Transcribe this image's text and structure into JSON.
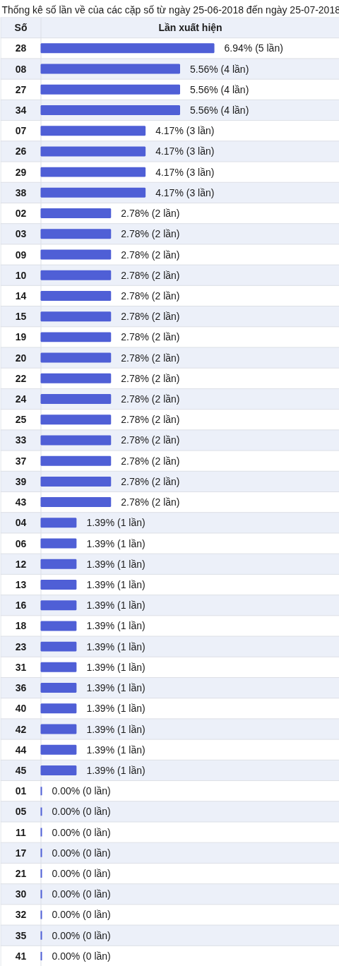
{
  "chart_data": {
    "type": "bar",
    "orientation": "horizontal",
    "title": "Thống kê số lần về của các cặp số từ ngày 25-06-2018 đến ngày 25-07-2018",
    "ylabel": "Số",
    "xlabel": "Lần xuất hiện",
    "categories": [
      "28",
      "08",
      "27",
      "34",
      "07",
      "26",
      "29",
      "38",
      "02",
      "03",
      "09",
      "10",
      "14",
      "15",
      "19",
      "20",
      "22",
      "24",
      "25",
      "33",
      "37",
      "39",
      "43",
      "04",
      "06",
      "12",
      "13",
      "16",
      "18",
      "23",
      "31",
      "36",
      "40",
      "42",
      "44",
      "45",
      "01",
      "05",
      "11",
      "17",
      "21",
      "30",
      "32",
      "35",
      "41"
    ],
    "values": [
      6.94,
      5.56,
      5.56,
      5.56,
      4.17,
      4.17,
      4.17,
      4.17,
      2.78,
      2.78,
      2.78,
      2.78,
      2.78,
      2.78,
      2.78,
      2.78,
      2.78,
      2.78,
      2.78,
      2.78,
      2.78,
      2.78,
      2.78,
      1.39,
      1.39,
      1.39,
      1.39,
      1.39,
      1.39,
      1.39,
      1.39,
      1.39,
      1.39,
      1.39,
      1.39,
      1.39,
      0.0,
      0.0,
      0.0,
      0.0,
      0.0,
      0.0,
      0.0,
      0.0,
      0.0
    ],
    "value_labels": [
      "6.94% (5 lần)",
      "5.56% (4 lần)",
      "5.56% (4 lần)",
      "5.56% (4 lần)",
      "4.17% (3 lần)",
      "4.17% (3 lần)",
      "4.17% (3 lần)",
      "4.17% (3 lần)",
      "2.78% (2 lần)",
      "2.78% (2 lần)",
      "2.78% (2 lần)",
      "2.78% (2 lần)",
      "2.78% (2 lần)",
      "2.78% (2 lần)",
      "2.78% (2 lần)",
      "2.78% (2 lần)",
      "2.78% (2 lần)",
      "2.78% (2 lần)",
      "2.78% (2 lần)",
      "2.78% (2 lần)",
      "2.78% (2 lần)",
      "2.78% (2 lần)",
      "2.78% (2 lần)",
      "1.39% (1 lần)",
      "1.39% (1 lần)",
      "1.39% (1 lần)",
      "1.39% (1 lần)",
      "1.39% (1 lần)",
      "1.39% (1 lần)",
      "1.39% (1 lần)",
      "1.39% (1 lần)",
      "1.39% (1 lần)",
      "1.39% (1 lần)",
      "1.39% (1 lần)",
      "1.39% (1 lần)",
      "1.39% (1 lần)",
      "0.00% (0 lần)",
      "0.00% (0 lần)",
      "0.00% (0 lần)",
      "0.00% (0 lần)",
      "0.00% (0 lần)",
      "0.00% (0 lần)",
      "0.00% (0 lần)",
      "0.00% (0 lần)",
      "0.00% (0 lần)"
    ],
    "color": "#4f5fd6",
    "xlim": [
      0,
      12
    ],
    "tick_labels": "y",
    "grid": "y"
  }
}
